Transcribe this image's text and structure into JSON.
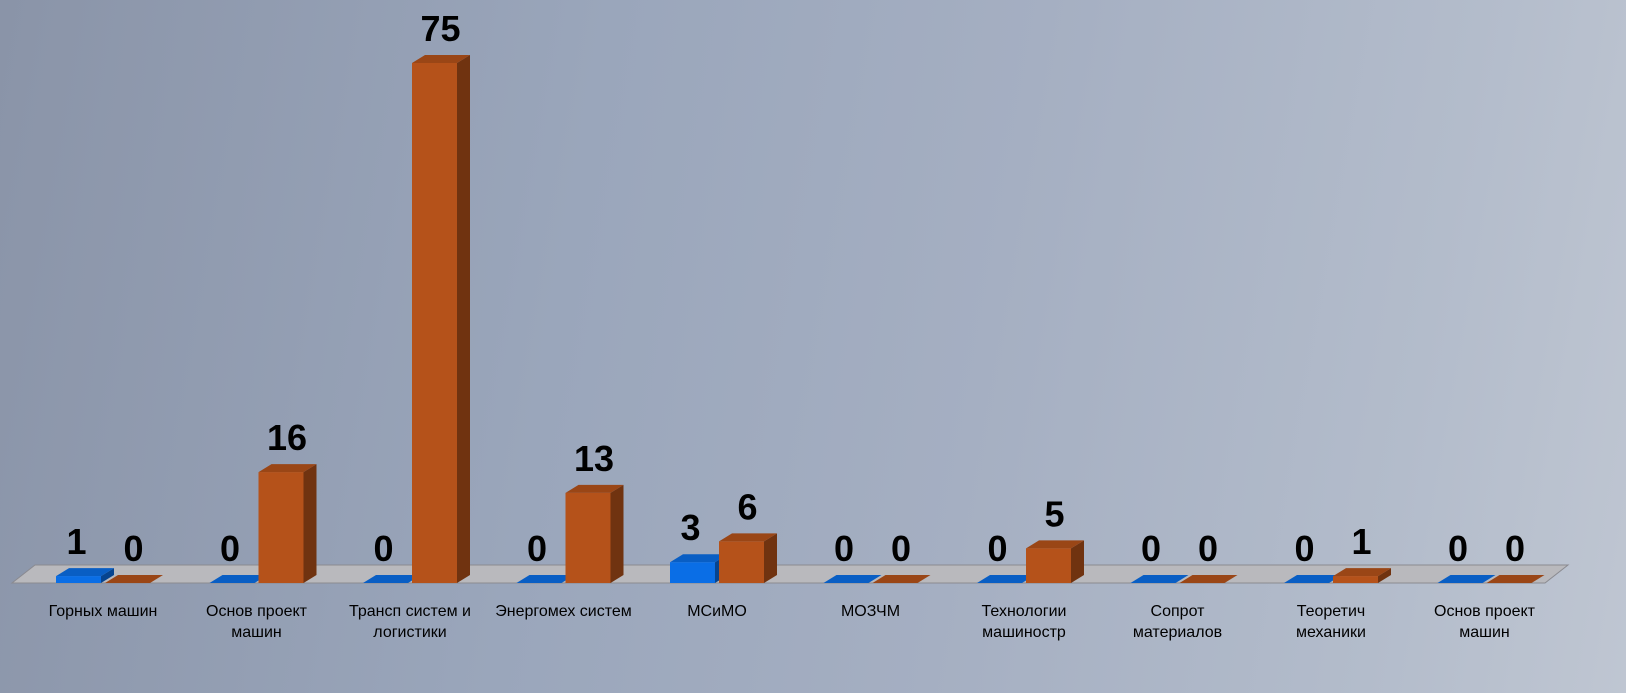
{
  "chart_data": {
    "type": "bar3d",
    "categories": [
      "Горных машин",
      "Основ проект машин",
      "Трансп систем и логистики",
      "Энергомех систем",
      "МСиМО",
      "МОЗЧМ",
      "Технологии машиностр",
      "Сопрот материалов",
      "Теоретич механики",
      "Основ проект машин"
    ],
    "series": [
      {
        "color": "#0a6ee6",
        "values": [
          1,
          0,
          0,
          0,
          3,
          0,
          0,
          0,
          0,
          0
        ]
      },
      {
        "color": "#b5521a",
        "values": [
          0,
          16,
          75,
          13,
          6,
          0,
          5,
          0,
          1,
          0
        ]
      }
    ]
  }
}
